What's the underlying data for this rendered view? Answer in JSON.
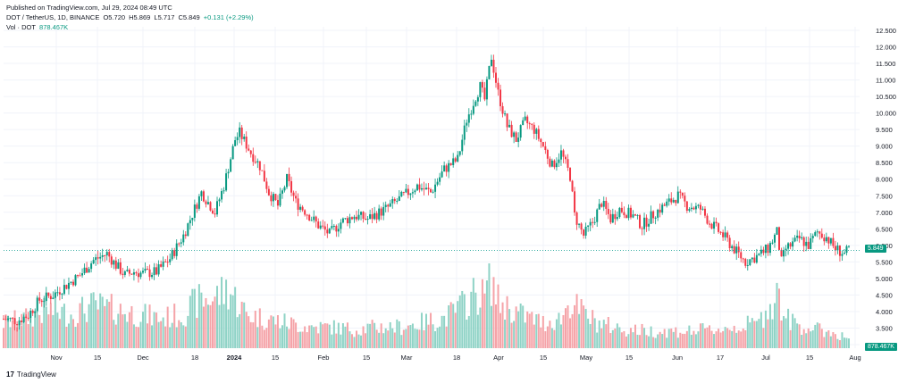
{
  "header": {
    "published": "Published on TradingView.com, Jul 29, 2024 08:49 UTC",
    "symbol": "DOT / TetherUS, 1D, BINANCE",
    "open": "O5.720",
    "high": "H5.869",
    "low": "L5.717",
    "close": "C5.849",
    "change": "+0.131 (+2.29%)",
    "vol_label": "Vol · DOT",
    "vol_value": "878.467K"
  },
  "footer": {
    "logo_text": "TradingView"
  },
  "colors": {
    "up": "#089981",
    "down": "#f23645",
    "up_vol": "#8fd3c6",
    "down_vol": "#f5a3a8",
    "last_line": "#26a69a"
  },
  "chart_data": {
    "type": "candlestick",
    "price_axis": {
      "min": 3.0,
      "max": 12.5,
      "ticks": [
        "12.500",
        "12.000",
        "11.500",
        "11.000",
        "10.500",
        "10.000",
        "9.500",
        "9.000",
        "8.500",
        "8.000",
        "7.500",
        "7.000",
        "6.500",
        "6.000",
        "5.500",
        "5.000",
        "4.500",
        "4.000",
        "3.500",
        "3.000"
      ]
    },
    "x_ticks": [
      "Nov",
      "15",
      "Dec",
      "18",
      "2024",
      "15",
      "Feb",
      "15",
      "Mar",
      "18",
      "Apr",
      "15",
      "May",
      "15",
      "Jun",
      "17",
      "Jul",
      "15",
      "Aug"
    ],
    "last_price": "5.849",
    "last_volume": "878.467K",
    "close_path": [
      [
        0,
        3.78
      ],
      [
        6,
        3.72
      ],
      [
        11,
        3.9
      ],
      [
        16,
        4.35
      ],
      [
        22,
        4.5
      ],
      [
        28,
        4.8
      ],
      [
        34,
        5.1
      ],
      [
        40,
        5.55
      ],
      [
        46,
        5.75
      ],
      [
        50,
        5.4
      ],
      [
        54,
        5.1
      ],
      [
        58,
        5.2
      ],
      [
        62,
        5.15
      ],
      [
        68,
        5.2
      ],
      [
        74,
        5.6
      ],
      [
        80,
        6.3
      ],
      [
        84,
        6.95
      ],
      [
        88,
        7.6
      ],
      [
        94,
        7.0
      ],
      [
        98,
        7.8
      ],
      [
        103,
        9.2
      ],
      [
        105,
        9.4
      ],
      [
        110,
        8.8
      ],
      [
        114,
        8.4
      ],
      [
        118,
        7.6
      ],
      [
        122,
        7.2
      ],
      [
        126,
        8.0
      ],
      [
        130,
        7.3
      ],
      [
        134,
        7.05
      ],
      [
        140,
        6.6
      ],
      [
        145,
        6.35
      ],
      [
        150,
        6.7
      ],
      [
        156,
        6.9
      ],
      [
        162,
        6.8
      ],
      [
        170,
        7.1
      ],
      [
        178,
        7.5
      ],
      [
        184,
        7.8
      ],
      [
        190,
        7.6
      ],
      [
        196,
        8.3
      ],
      [
        202,
        8.6
      ],
      [
        206,
        9.8
      ],
      [
        210,
        10.5
      ],
      [
        212,
        10.8
      ],
      [
        214,
        10.4
      ],
      [
        216,
        11.3
      ],
      [
        217,
        11.7
      ],
      [
        220,
        10.6
      ],
      [
        224,
        9.6
      ],
      [
        228,
        9.2
      ],
      [
        232,
        9.75
      ],
      [
        236,
        9.5
      ],
      [
        240,
        9.0
      ],
      [
        244,
        8.4
      ],
      [
        248,
        8.8
      ],
      [
        252,
        8.1
      ],
      [
        254,
        6.9
      ],
      [
        258,
        6.3
      ],
      [
        262,
        6.7
      ],
      [
        266,
        7.3
      ],
      [
        270,
        6.8
      ],
      [
        274,
        7.1
      ],
      [
        280,
        6.9
      ],
      [
        284,
        6.6
      ],
      [
        290,
        7.0
      ],
      [
        296,
        7.3
      ],
      [
        300,
        7.5
      ],
      [
        304,
        7.2
      ],
      [
        310,
        7.1
      ],
      [
        314,
        6.7
      ],
      [
        320,
        6.3
      ],
      [
        326,
        5.8
      ],
      [
        330,
        5.5
      ],
      [
        336,
        5.7
      ],
      [
        340,
        5.9
      ],
      [
        344,
        6.4
      ],
      [
        346,
        5.5
      ],
      [
        348,
        5.9
      ],
      [
        354,
        6.2
      ],
      [
        358,
        6.0
      ],
      [
        362,
        6.4
      ],
      [
        366,
        6.25
      ],
      [
        370,
        5.9
      ],
      [
        374,
        5.75
      ],
      [
        376,
        5.849
      ]
    ],
    "volume_path": [
      [
        0,
        0.3
      ],
      [
        10,
        0.35
      ],
      [
        20,
        0.45
      ],
      [
        30,
        0.4
      ],
      [
        40,
        0.5
      ],
      [
        50,
        0.45
      ],
      [
        60,
        0.4
      ],
      [
        70,
        0.35
      ],
      [
        80,
        0.4
      ],
      [
        86,
        0.55
      ],
      [
        94,
        0.6
      ],
      [
        100,
        0.7
      ],
      [
        104,
        0.55
      ],
      [
        108,
        0.4
      ],
      [
        116,
        0.35
      ],
      [
        126,
        0.3
      ],
      [
        136,
        0.25
      ],
      [
        146,
        0.25
      ],
      [
        156,
        0.22
      ],
      [
        166,
        0.25
      ],
      [
        176,
        0.25
      ],
      [
        186,
        0.3
      ],
      [
        196,
        0.35
      ],
      [
        204,
        0.5
      ],
      [
        210,
        0.65
      ],
      [
        214,
        0.6
      ],
      [
        216,
        0.9
      ],
      [
        220,
        0.55
      ],
      [
        230,
        0.4
      ],
      [
        240,
        0.3
      ],
      [
        248,
        0.35
      ],
      [
        252,
        0.55
      ],
      [
        256,
        0.45
      ],
      [
        264,
        0.3
      ],
      [
        276,
        0.22
      ],
      [
        290,
        0.2
      ],
      [
        304,
        0.2
      ],
      [
        316,
        0.22
      ],
      [
        326,
        0.25
      ],
      [
        336,
        0.3
      ],
      [
        344,
        0.65
      ],
      [
        348,
        0.35
      ],
      [
        356,
        0.25
      ],
      [
        366,
        0.2
      ],
      [
        376,
        0.12
      ]
    ]
  }
}
